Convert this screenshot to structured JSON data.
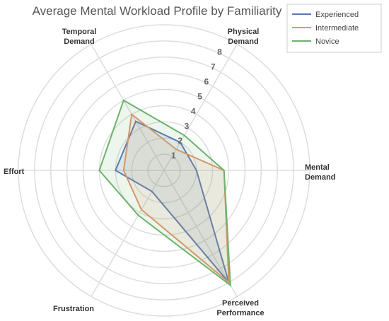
{
  "chart_data": {
    "type": "radar",
    "title": "Average Mental Workload Profile by Familiarity",
    "axes": [
      [
        "Mental",
        "Demand"
      ],
      [
        "Perceived",
        "Performance"
      ],
      [
        "Frustration"
      ],
      [
        "Effort"
      ],
      [
        "Temporal",
        "Demand"
      ],
      [
        "Physical",
        "Demand"
      ]
    ],
    "rlim": [
      0,
      9
    ],
    "ticks": [
      "1",
      "2",
      "3",
      "4",
      "5",
      "6",
      "7",
      "8"
    ],
    "grid": true,
    "legend_position": "top-right",
    "series": [
      {
        "name": "Experienced",
        "values": [
          2.0,
          8.0,
          1.5,
          3.0,
          3.5,
          2.0
        ],
        "color": "#5b74b8",
        "fill": "#5b74b8"
      },
      {
        "name": "Intermediate",
        "values": [
          3.7,
          8.0,
          2.8,
          2.5,
          4.0,
          1.5
        ],
        "color": "#e0956a",
        "fill": "#e0956a"
      },
      {
        "name": "Novice",
        "values": [
          3.7,
          8.2,
          3.2,
          4.0,
          5.0,
          2.5
        ],
        "color": "#6db36d",
        "fill": "#6db36d"
      }
    ]
  }
}
